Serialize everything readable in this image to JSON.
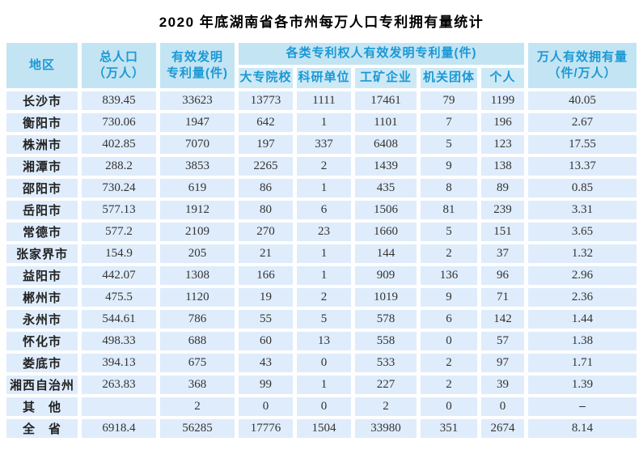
{
  "title": "2020 年底湖南省各市州每万人口专利拥有量统计",
  "table": {
    "col_headers": {
      "region": "地区",
      "population": "总人口\n（万人）",
      "valid_patents": "有效发明\n专利量(件)",
      "group": "各类专利权人有效发明专利量(件)",
      "subcols": [
        "大专院校",
        "科研单位",
        "工矿企业",
        "机关团体",
        "个人"
      ],
      "per_capita": "万人有效拥有量\n（件/万人）"
    },
    "rows": [
      {
        "region": "长沙市",
        "values": [
          "839.45",
          "33623",
          "13773",
          "1111",
          "17461",
          "79",
          "1199",
          "40.05"
        ]
      },
      {
        "region": "衡阳市",
        "values": [
          "730.06",
          "1947",
          "642",
          "1",
          "1101",
          "7",
          "196",
          "2.67"
        ]
      },
      {
        "region": "株洲市",
        "values": [
          "402.85",
          "7070",
          "197",
          "337",
          "6408",
          "5",
          "123",
          "17.55"
        ]
      },
      {
        "region": "湘潭市",
        "values": [
          "288.2",
          "3853",
          "2265",
          "2",
          "1439",
          "9",
          "138",
          "13.37"
        ]
      },
      {
        "region": "邵阳市",
        "values": [
          "730.24",
          "619",
          "86",
          "1",
          "435",
          "8",
          "89",
          "0.85"
        ]
      },
      {
        "region": "岳阳市",
        "values": [
          "577.13",
          "1912",
          "80",
          "6",
          "1506",
          "81",
          "239",
          "3.31"
        ]
      },
      {
        "region": "常德市",
        "values": [
          "577.2",
          "2109",
          "270",
          "23",
          "1660",
          "5",
          "151",
          "3.65"
        ]
      },
      {
        "region": "张家界市",
        "values": [
          "154.9",
          "205",
          "21",
          "1",
          "144",
          "2",
          "37",
          "1.32"
        ]
      },
      {
        "region": "益阳市",
        "values": [
          "442.07",
          "1308",
          "166",
          "1",
          "909",
          "136",
          "96",
          "2.96"
        ]
      },
      {
        "region": "郴州市",
        "values": [
          "475.5",
          "1120",
          "19",
          "2",
          "1019",
          "9",
          "71",
          "2.36"
        ]
      },
      {
        "region": "永州市",
        "values": [
          "544.61",
          "786",
          "55",
          "5",
          "578",
          "6",
          "142",
          "1.44"
        ]
      },
      {
        "region": "怀化市",
        "values": [
          "498.33",
          "688",
          "60",
          "13",
          "558",
          "0",
          "57",
          "1.38"
        ]
      },
      {
        "region": "娄底市",
        "values": [
          "394.13",
          "675",
          "43",
          "0",
          "533",
          "2",
          "97",
          "1.71"
        ]
      },
      {
        "region": "湘西自治州",
        "values": [
          "263.83",
          "368",
          "99",
          "1",
          "227",
          "2",
          "39",
          "1.39"
        ]
      },
      {
        "region": "其　他",
        "values": [
          "",
          "2",
          "0",
          "0",
          "2",
          "0",
          "0",
          "–"
        ]
      },
      {
        "region": "全　省",
        "values": [
          "6918.4",
          "56285",
          "17776",
          "1504",
          "33980",
          "351",
          "2674",
          "8.14"
        ]
      }
    ]
  }
}
